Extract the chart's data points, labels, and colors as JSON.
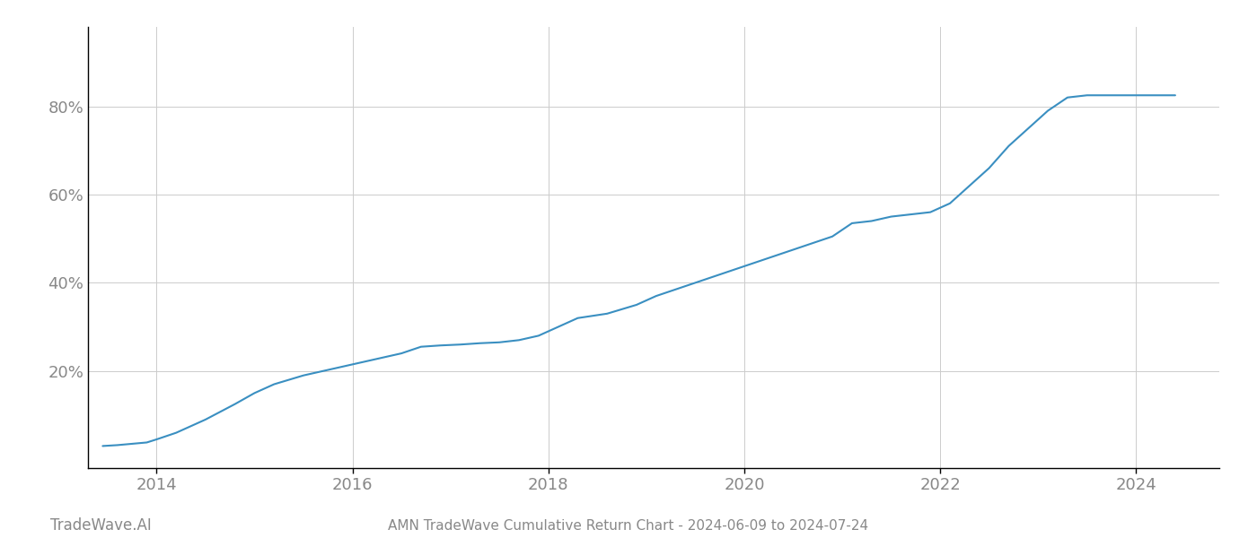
{
  "title": "AMN TradeWave Cumulative Return Chart - 2024-06-09 to 2024-07-24",
  "watermark": "TradeWave.AI",
  "line_color": "#3a8fc1",
  "background_color": "#ffffff",
  "grid_color": "#cccccc",
  "x_data": [
    2013.45,
    2013.6,
    2013.75,
    2013.9,
    2014.0,
    2014.2,
    2014.5,
    2014.8,
    2015.0,
    2015.2,
    2015.5,
    2015.8,
    2016.0,
    2016.2,
    2016.5,
    2016.7,
    2016.9,
    2017.1,
    2017.3,
    2017.5,
    2017.7,
    2017.9,
    2018.1,
    2018.3,
    2018.6,
    2018.9,
    2019.1,
    2019.3,
    2019.5,
    2019.7,
    2019.9,
    2020.1,
    2020.3,
    2020.5,
    2020.7,
    2020.9,
    2021.0,
    2021.1,
    2021.3,
    2021.5,
    2021.7,
    2021.9,
    2022.1,
    2022.3,
    2022.5,
    2022.7,
    2022.9,
    2023.1,
    2023.3,
    2023.5,
    2024.0,
    2024.4
  ],
  "y_data": [
    3.0,
    3.2,
    3.5,
    3.8,
    4.5,
    6.0,
    9.0,
    12.5,
    15.0,
    17.0,
    19.0,
    20.5,
    21.5,
    22.5,
    24.0,
    25.5,
    25.8,
    26.0,
    26.3,
    26.5,
    27.0,
    28.0,
    30.0,
    32.0,
    33.0,
    35.0,
    37.0,
    38.5,
    40.0,
    41.5,
    43.0,
    44.5,
    46.0,
    47.5,
    49.0,
    50.5,
    52.0,
    53.5,
    54.0,
    55.0,
    55.5,
    56.0,
    58.0,
    62.0,
    66.0,
    71.0,
    75.0,
    79.0,
    82.0,
    82.5,
    82.5,
    82.5
  ],
  "xlim": [
    2013.3,
    2024.85
  ],
  "ylim": [
    -2,
    98
  ],
  "yticks": [
    20,
    40,
    60,
    80
  ],
  "ytick_labels": [
    "20%",
    "40%",
    "60%",
    "80%"
  ],
  "xtick_years": [
    2014,
    2016,
    2018,
    2020,
    2022,
    2024
  ],
  "title_fontsize": 11,
  "watermark_fontsize": 12,
  "tick_label_color": "#888888",
  "line_width": 1.5
}
